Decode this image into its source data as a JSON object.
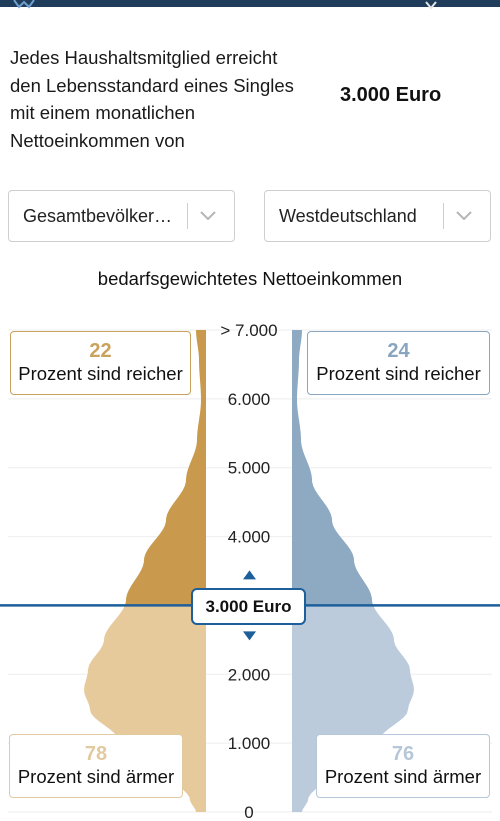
{
  "intro": {
    "lines": [
      "Jedes Haushaltsmitglied erreicht",
      "den Lebensstandard eines Singles",
      "mit einem monatlichen",
      "Nettoeinkommen von"
    ],
    "amount": "3.000 Euro"
  },
  "filters": {
    "population": {
      "value": "Gesamtbevölker…",
      "icon": "chevron-down-icon"
    },
    "region": {
      "value": "Westdeutschland",
      "icon": "chevron-down-icon"
    }
  },
  "chart_data": {
    "type": "area",
    "title": "bedarfsgewichtetes Nettoeinkommen",
    "y_ticks": [
      "> 7.000",
      "6.000",
      "5.000",
      "4.000",
      "3.000",
      "2.000",
      "1.000",
      "0"
    ],
    "ylim": [
      0,
      7000
    ],
    "marker_value": 3000,
    "marker_label": "3.000 Euro",
    "colors": {
      "left_above": "#c99a4e",
      "left_below": "#e6ca9b",
      "right_above": "#8ea9c2",
      "right_below": "#bccbdb",
      "marker": "#1d5f9b"
    },
    "left": {
      "richer_percent": "22",
      "richer_label": "Prozent sind reicher",
      "poorer_percent": "78",
      "poorer_label": "Prozent sind ärmer"
    },
    "right": {
      "richer_percent": "24",
      "richer_label": "Prozent sind reicher",
      "poorer_percent": "76",
      "poorer_label": "Prozent sind ärmer"
    }
  }
}
